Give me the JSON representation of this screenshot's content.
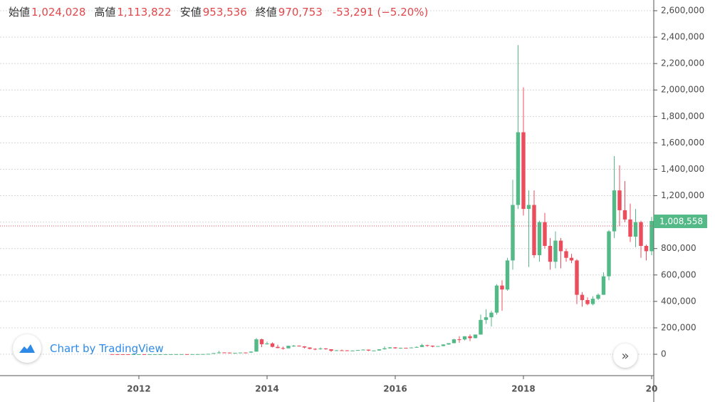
{
  "header": {
    "items": [
      {
        "label": "始値",
        "value": "1,024,028"
      },
      {
        "label": "高値",
        "value": "1,113,822"
      },
      {
        "label": "安値",
        "value": "953,536"
      },
      {
        "label": "終値",
        "value": "970,753"
      }
    ],
    "change": "-53,291 (−5.20%)"
  },
  "watermark": "Chart by TradingView",
  "chart_data": {
    "type": "candlestick",
    "categories": [
      null,
      null,
      null,
      null,
      null,
      "2012",
      null,
      null,
      null,
      null,
      null,
      null,
      null,
      null,
      null,
      null,
      null,
      null,
      null,
      null,
      null,
      null,
      null,
      null,
      null,
      null,
      null,
      null,
      null,
      "2014",
      null,
      null,
      null,
      null,
      null,
      null,
      null,
      null,
      null,
      null,
      null,
      null,
      null,
      null,
      null,
      null,
      null,
      null,
      null,
      null,
      null,
      null,
      null,
      "2016",
      null,
      null,
      null,
      null,
      null,
      null,
      null,
      null,
      null,
      null,
      null,
      null,
      null,
      null,
      null,
      null,
      null,
      null,
      null,
      null,
      null,
      null,
      null,
      "2018",
      null,
      null,
      null,
      null,
      null,
      null,
      null,
      null,
      null,
      null,
      null,
      null,
      null,
      null,
      null,
      null,
      null,
      null,
      null,
      null,
      null,
      null,
      null,
      "20"
    ],
    "open": [
      1000,
      650,
      400,
      250,
      230,
      360,
      420,
      380,
      400,
      410,
      415,
      530,
      740,
      800,
      970,
      870,
      1000,
      1150,
      1850,
      3200,
      8800,
      13900,
      12900,
      9600,
      10500,
      13000,
      12700,
      20000,
      113000,
      76000,
      82000,
      56000,
      47000,
      45000,
      64000,
      65000,
      60000,
      51000,
      41000,
      39000,
      44000,
      38000,
      26000,
      30000,
      29500,
      28000,
      28300,
      32000,
      35000,
      28000,
      28500,
      37500,
      45000,
      52000,
      45000,
      49000,
      47000,
      51000,
      55000,
      69000,
      65000,
      58000,
      62000,
      74000,
      84000,
      113000,
      112000,
      136000,
      122000,
      149000,
      260000,
      280000,
      315000,
      520000,
      490000,
      710000,
      1130000,
      1680000,
      1100000,
      1130000,
      750000,
      1000000,
      820000,
      700000,
      860000,
      780000,
      730000,
      710000,
      450000,
      410000,
      380000,
      420000,
      450000,
      590000,
      930000,
      1240000,
      1090000,
      1020000,
      890000,
      1000000,
      820000,
      780000
    ],
    "high": [
      1100,
      700,
      420,
      280,
      370,
      550,
      480,
      420,
      430,
      430,
      540,
      750,
      1250,
      980,
      1000,
      1040,
      1150,
      1900,
      3200,
      9000,
      26000,
      13900,
      13200,
      11000,
      13000,
      14000,
      22000,
      123000,
      118000,
      96000,
      90000,
      72000,
      58000,
      65000,
      70000,
      67000,
      61000,
      53000,
      45000,
      52000,
      46000,
      38500,
      32000,
      35000,
      31000,
      30000,
      33000,
      38000,
      36000,
      29000,
      38000,
      60000,
      55000,
      54000,
      50000,
      49500,
      52000,
      60000,
      79000,
      72000,
      66000,
      62000,
      75000,
      84000,
      117000,
      137000,
      137000,
      150000,
      150000,
      300000,
      340000,
      330000,
      530000,
      560000,
      730000,
      1320000,
      2340000,
      2020000,
      1240000,
      1240000,
      1010000,
      1070000,
      880000,
      930000,
      880000,
      800000,
      760000,
      720000,
      470000,
      430000,
      440000,
      460000,
      620000,
      940000,
      1500000,
      1430000,
      1310000,
      1140000,
      1100000,
      1010000,
      830000,
      1040000
    ],
    "low": [
      600,
      350,
      180,
      160,
      220,
      360,
      330,
      360,
      380,
      390,
      410,
      520,
      620,
      780,
      850,
      850,
      970,
      1150,
      1800,
      3100,
      4500,
      7800,
      6500,
      6300,
      10200,
      11400,
      12400,
      19800,
      54000,
      73000,
      52000,
      45000,
      35000,
      44000,
      56000,
      58000,
      44000,
      37000,
      31000,
      34000,
      35000,
      19000,
      25000,
      28000,
      26500,
      27000,
      27000,
      31500,
      24000,
      26500,
      28000,
      35500,
      43000,
      42000,
      42000,
      45000,
      46500,
      49000,
      54000,
      57000,
      53000,
      57000,
      61000,
      71000,
      83000,
      87000,
      104000,
      100000,
      120000,
      149000,
      230000,
      210000,
      300000,
      330000,
      480000,
      640000,
      1100000,
      1050000,
      660000,
      730000,
      700000,
      800000,
      640000,
      650000,
      650000,
      700000,
      690000,
      380000,
      360000,
      370000,
      370000,
      410000,
      450000,
      560000,
      880000,
      970000,
      1000000,
      850000,
      810000,
      730000,
      710000,
      750000
    ],
    "close": [
      650,
      400,
      250,
      230,
      360,
      420,
      380,
      400,
      410,
      415,
      530,
      740,
      800,
      970,
      870,
      1000,
      1150,
      1850,
      3200,
      8800,
      13900,
      12900,
      9600,
      10500,
      13000,
      12700,
      20000,
      113000,
      76000,
      82000,
      56000,
      47000,
      45000,
      64000,
      65000,
      60000,
      51000,
      41000,
      39000,
      44000,
      38000,
      26000,
      30000,
      29500,
      28000,
      28300,
      32000,
      35000,
      28000,
      28500,
      37500,
      45000,
      52000,
      45000,
      49000,
      47000,
      51000,
      55000,
      69000,
      65000,
      58000,
      62000,
      74000,
      84000,
      113000,
      112000,
      136000,
      122000,
      149000,
      260000,
      280000,
      315000,
      520000,
      490000,
      710000,
      1130000,
      1680000,
      1100000,
      1130000,
      750000,
      1000000,
      820000,
      700000,
      860000,
      780000,
      730000,
      710000,
      450000,
      410000,
      380000,
      420000,
      450000,
      590000,
      930000,
      1240000,
      1090000,
      1020000,
      890000,
      1000000,
      820000,
      780000,
      1008558
    ],
    "up_color": "#53b987",
    "down_color": "#eb4d5c",
    "ylim": [
      -161700,
      2681000
    ],
    "yticks": [
      0,
      {
        "value": 200000,
        "label": "200,000"
      },
      {
        "value": 400000,
        "label": "400,000"
      },
      {
        "value": 600000,
        "label": "600,000"
      },
      {
        "value": 800000,
        "label": "800,000"
      },
      {
        "value": 1000000,
        "label": "1,000,000"
      },
      {
        "value": 1200000,
        "label": "1,200,000"
      },
      {
        "value": 1400000,
        "label": "1,400,000"
      },
      {
        "value": 1600000,
        "label": "1,600,000"
      },
      {
        "value": 1800000,
        "label": "1,800,000"
      },
      {
        "value": 2000000,
        "label": "2,000,000"
      },
      {
        "value": 2200000,
        "label": "2,200,000"
      },
      {
        "value": 2400000,
        "label": "2,400,000"
      },
      {
        "value": 2600000,
        "label": "2,600,000"
      }
    ],
    "grid": true,
    "last_price": {
      "value": 1008558,
      "label": "1,008,558"
    },
    "price_line": 970753
  }
}
